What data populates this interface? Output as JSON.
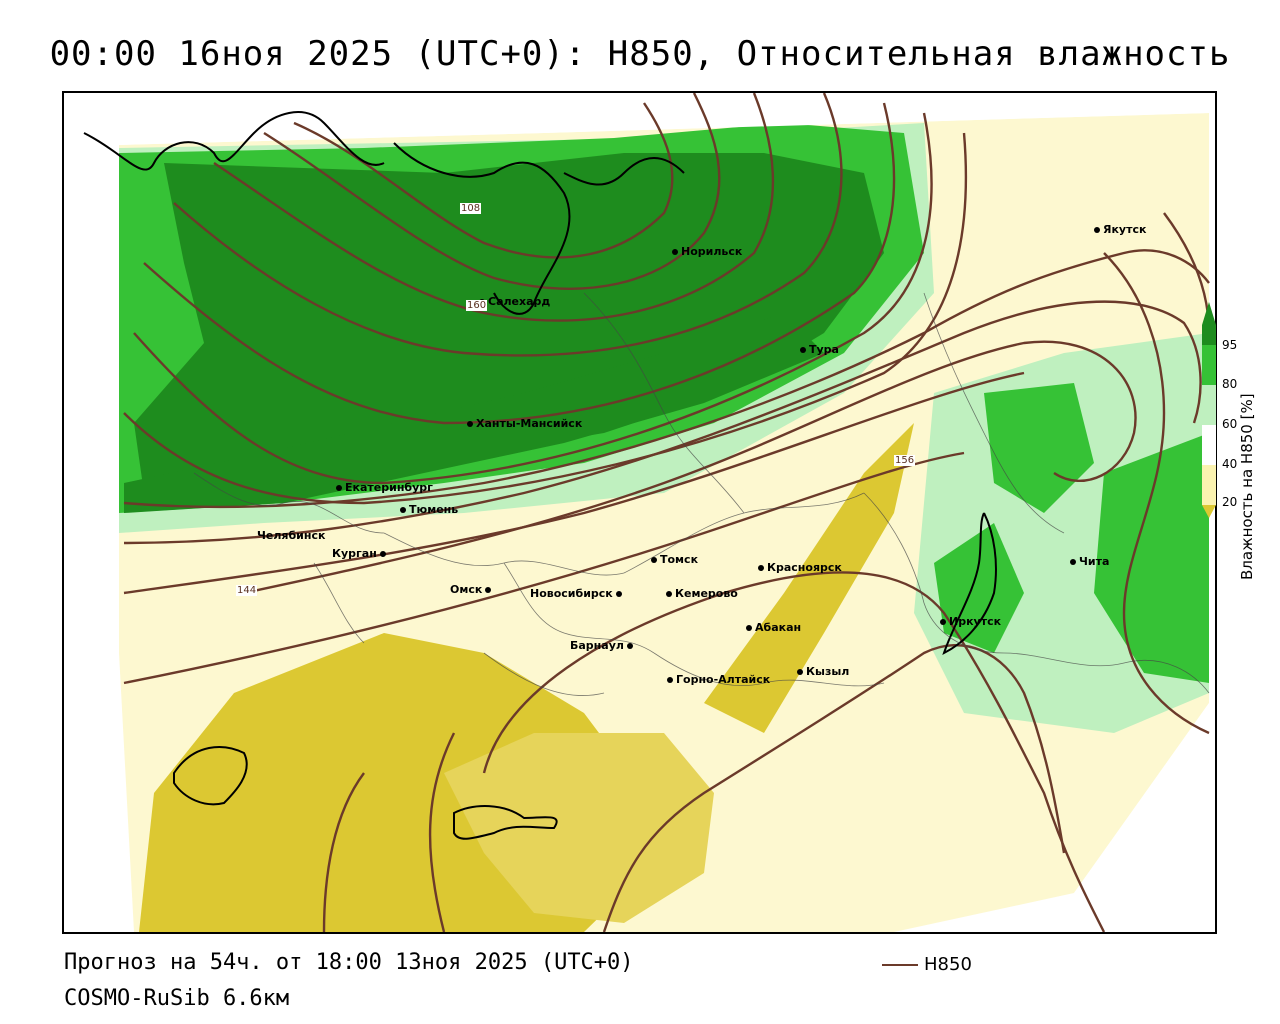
{
  "header": {
    "title": "00:00 16ноя 2025 (UTC+0): H850, Относительная влажность"
  },
  "footer": {
    "forecast": "Прогноз на 54ч. от 18:00 13ноя 2025 (UTC+0)",
    "model": "COSMO-RuSib 6.6км",
    "legend_label": "H850"
  },
  "colorbar": {
    "title": "Влажность на H850 [%]",
    "ticks": [
      "95",
      "80",
      "60",
      "40",
      "20"
    ],
    "colors": {
      "95": "#1e8c1e",
      "80": "#36c236",
      "60": "#bff0bf",
      "40": "#ffffff",
      "20": "#fbf3b0",
      "0": "#dcc832"
    }
  },
  "contour_labels": [
    "108",
    "160",
    "156",
    "144"
  ],
  "cities": [
    {
      "name": "Якутск"
    },
    {
      "name": "Норильск"
    },
    {
      "name": "Салехард"
    },
    {
      "name": "Тура"
    },
    {
      "name": "Ханты-Мансийск"
    },
    {
      "name": "Екатеринбург"
    },
    {
      "name": "Тюмень"
    },
    {
      "name": "Челябинск"
    },
    {
      "name": "Курган"
    },
    {
      "name": "Омск"
    },
    {
      "name": "Новосибирск"
    },
    {
      "name": "Томск"
    },
    {
      "name": "Кемерово"
    },
    {
      "name": "Красноярск"
    },
    {
      "name": "Барнаул"
    },
    {
      "name": "Абакан"
    },
    {
      "name": "Горно-Алтайск"
    },
    {
      "name": "Кызыл"
    },
    {
      "name": "Иркутск"
    },
    {
      "name": "Чита"
    }
  ],
  "colors": {
    "contour": "#6b3a2a",
    "dark_green": "#1e8c1e",
    "green": "#36c236",
    "light_green": "#bff0bf",
    "light_yellow": "#fbf3b0",
    "yellow": "#dcc832"
  }
}
